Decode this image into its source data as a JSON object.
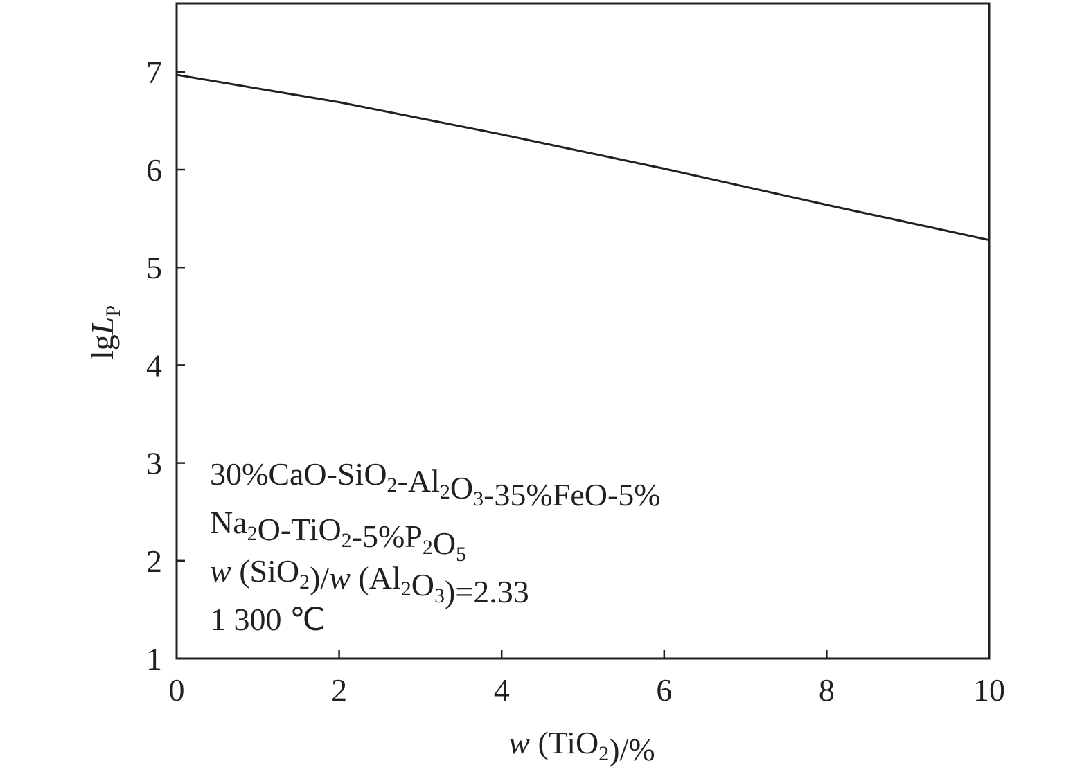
{
  "chart_data": {
    "type": "line",
    "x_label": [
      {
        "text": "w",
        "italic": true
      },
      {
        "text": " (TiO"
      },
      {
        "text": "2",
        "sub": true
      },
      {
        "text": ")/%"
      }
    ],
    "y_label": [
      {
        "text": "lg"
      },
      {
        "text": "L",
        "italic": true
      },
      {
        "text": "P",
        "sub": true
      }
    ],
    "annotation": [
      [
        {
          "text": "30%CaO-SiO"
        },
        {
          "text": "2",
          "sub": true
        },
        {
          "text": "-Al"
        },
        {
          "text": "2",
          "sub": true
        },
        {
          "text": "O"
        },
        {
          "text": "3",
          "sub": true
        },
        {
          "text": "-35%FeO-5%"
        }
      ],
      [
        {
          "text": "Na"
        },
        {
          "text": "2",
          "sub": true
        },
        {
          "text": "O-TiO"
        },
        {
          "text": "2",
          "sub": true
        },
        {
          "text": "-5%P"
        },
        {
          "text": "2",
          "sub": true
        },
        {
          "text": "O"
        },
        {
          "text": "5",
          "sub": true
        }
      ],
      [
        {
          "text": "w",
          "italic": true
        },
        {
          "text": " (SiO"
        },
        {
          "text": "2",
          "sub": true
        },
        {
          "text": ")/"
        },
        {
          "text": "w",
          "italic": true
        },
        {
          "text": " (Al"
        },
        {
          "text": "2",
          "sub": true
        },
        {
          "text": "O"
        },
        {
          "text": "3",
          "sub": true
        },
        {
          "text": ")=2.33"
        }
      ],
      [
        {
          "text": "1 300 ℃"
        }
      ]
    ],
    "x": [
      0,
      2,
      4,
      6,
      8,
      10
    ],
    "series": [
      {
        "color": "#231f20",
        "values": [
          6.97,
          6.69,
          6.36,
          6.01,
          5.64,
          5.28
        ]
      }
    ],
    "xlim": [
      0,
      10
    ],
    "xticks": [
      0,
      2,
      4,
      6,
      8,
      10
    ],
    "ylim": [
      1,
      7.7
    ],
    "yticks": [
      1,
      2,
      3,
      4,
      5,
      6,
      7
    ],
    "grid": false
  }
}
